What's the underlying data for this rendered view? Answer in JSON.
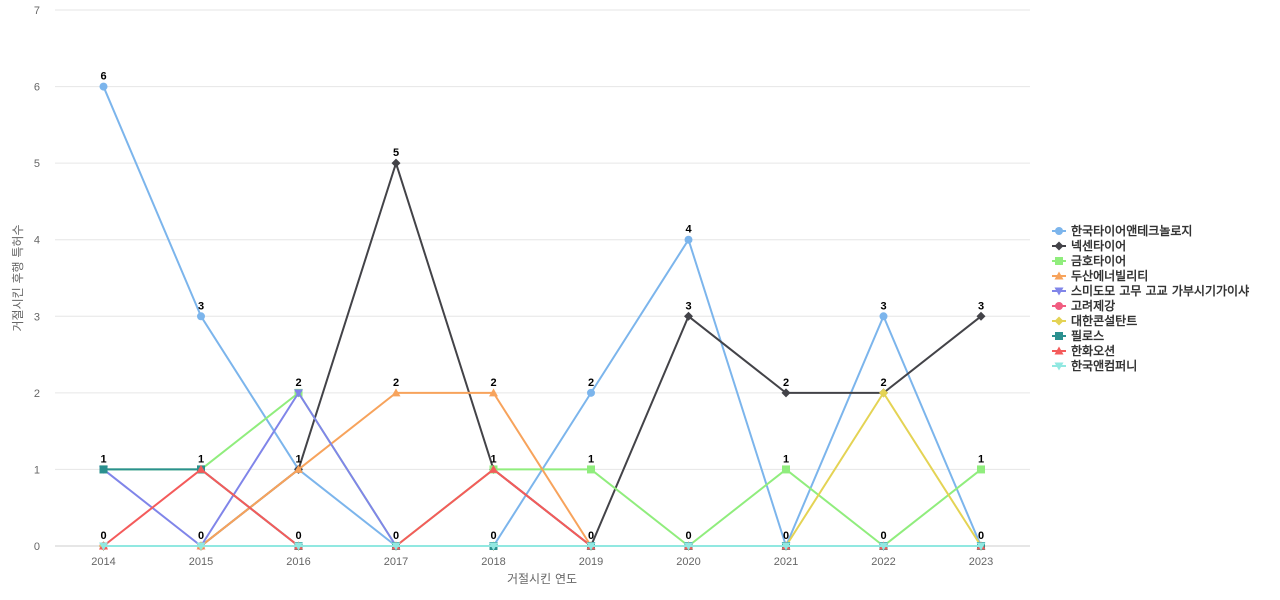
{
  "chart_data": {
    "type": "line",
    "title": "",
    "xlabel": "거절시킨 연도",
    "ylabel": "거절시킨 후행 특허수",
    "ylim": [
      0,
      7
    ],
    "yticks": [
      0,
      1,
      2,
      3,
      4,
      5,
      6,
      7
    ],
    "grid": true,
    "legend_position": "right",
    "x": [
      "2014",
      "2015",
      "2016",
      "2017",
      "2018",
      "2019",
      "2020",
      "2021",
      "2022",
      "2023"
    ],
    "series": [
      {
        "name": "한국타이어앤테크놀로지",
        "color": "#7cb5ec",
        "marker": "circle",
        "values": [
          6,
          3,
          1,
          0,
          0,
          2,
          4,
          0,
          3,
          0
        ]
      },
      {
        "name": "넥센타이어",
        "color": "#434348",
        "marker": "diamond",
        "values": [
          0,
          0,
          1,
          5,
          1,
          0,
          3,
          2,
          2,
          3
        ]
      },
      {
        "name": "금호타이어",
        "color": "#90ed7d",
        "marker": "square",
        "values": [
          1,
          1,
          2,
          0,
          1,
          1,
          0,
          1,
          0,
          1
        ]
      },
      {
        "name": "두산에너빌리티",
        "color": "#f7a35c",
        "marker": "triangle",
        "values": [
          0,
          0,
          1,
          2,
          2,
          0,
          0,
          0,
          0,
          0
        ]
      },
      {
        "name": "스미도모 고무 고교 가부시기가이샤",
        "color": "#8085e9",
        "marker": "triangle-down",
        "values": [
          1,
          0,
          2,
          0,
          0,
          0,
          0,
          0,
          0,
          0
        ]
      },
      {
        "name": "고려제강",
        "color": "#f15c80",
        "marker": "circle",
        "values": [
          0,
          0,
          0,
          0,
          0,
          0,
          0,
          0,
          0,
          0
        ]
      },
      {
        "name": "대한콘설탄트",
        "color": "#e4d354",
        "marker": "diamond",
        "values": [
          0,
          0,
          0,
          0,
          0,
          0,
          0,
          0,
          2,
          0
        ]
      },
      {
        "name": "필로스",
        "color": "#2b908f",
        "marker": "square",
        "values": [
          1,
          1,
          0,
          0,
          0,
          0,
          0,
          0,
          0,
          0
        ]
      },
      {
        "name": "한화오션",
        "color": "#f45b5b",
        "marker": "triangle",
        "values": [
          0,
          1,
          0,
          0,
          1,
          0,
          0,
          0,
          0,
          0
        ]
      },
      {
        "name": "한국앤컴퍼니",
        "color": "#91e8e1",
        "marker": "triangle-down",
        "values": [
          0,
          0,
          0,
          0,
          0,
          0,
          0,
          0,
          0,
          0
        ]
      }
    ],
    "data_labels": [
      {
        "x": "2014",
        "label": "6"
      },
      {
        "x": "2014",
        "label": "1"
      },
      {
        "x": "2014",
        "label": "0"
      },
      {
        "x": "2015",
        "label": "3"
      },
      {
        "x": "2015",
        "label": "1"
      },
      {
        "x": "2015",
        "label": "0"
      },
      {
        "x": "2016",
        "label": "2"
      },
      {
        "x": "2016",
        "label": "1"
      },
      {
        "x": "2016",
        "label": "0"
      },
      {
        "x": "2017",
        "label": "5"
      },
      {
        "x": "2017",
        "label": "2"
      },
      {
        "x": "2017",
        "label": "0"
      },
      {
        "x": "2018",
        "label": "2"
      },
      {
        "x": "2018",
        "label": "1"
      },
      {
        "x": "2018",
        "label": "0"
      },
      {
        "x": "2019",
        "label": "2"
      },
      {
        "x": "2019",
        "label": "1"
      },
      {
        "x": "2019",
        "label": "0"
      },
      {
        "x": "2020",
        "label": "4"
      },
      {
        "x": "2020",
        "label": "3"
      },
      {
        "x": "2020",
        "label": "0"
      },
      {
        "x": "2021",
        "label": "2"
      },
      {
        "x": "2021",
        "label": "1"
      },
      {
        "x": "2021",
        "label": "0"
      },
      {
        "x": "2022",
        "label": "3"
      },
      {
        "x": "2022",
        "label": "2"
      },
      {
        "x": "2022",
        "label": "0"
      },
      {
        "x": "2023",
        "label": "3"
      },
      {
        "x": "2023",
        "label": "1"
      },
      {
        "x": "2023",
        "label": "0"
      }
    ]
  }
}
